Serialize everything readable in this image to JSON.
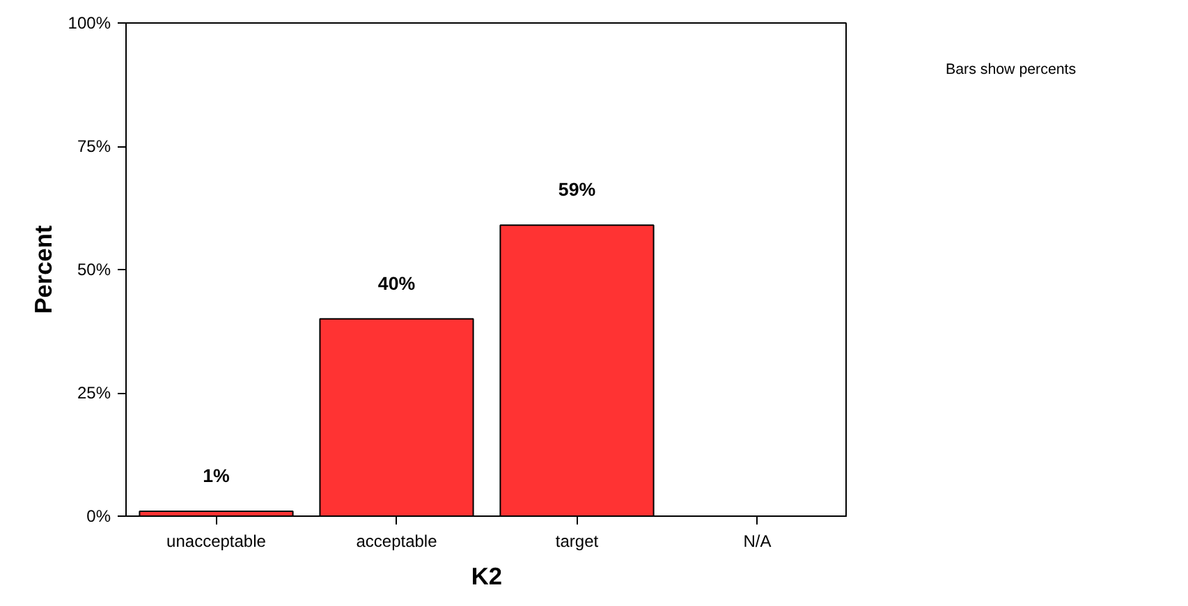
{
  "chart_data": {
    "type": "bar",
    "xlabel": "K2",
    "ylabel": "Percent",
    "categories": [
      "unacceptable",
      "acceptable",
      "target",
      "N/A"
    ],
    "values": [
      1,
      40,
      59,
      null
    ],
    "value_labels": [
      "1%",
      "40%",
      "59%",
      null
    ],
    "color": "#ff3333",
    "ylim": [
      0,
      100
    ],
    "yticks": [
      {
        "value": 0,
        "label": "0%"
      },
      {
        "value": 25,
        "label": "25%"
      },
      {
        "value": 50,
        "label": "50%"
      },
      {
        "value": 75,
        "label": "75%"
      },
      {
        "value": 100,
        "label": "100%"
      }
    ],
    "grid": false,
    "annotations": [
      "Bars show percents"
    ]
  }
}
